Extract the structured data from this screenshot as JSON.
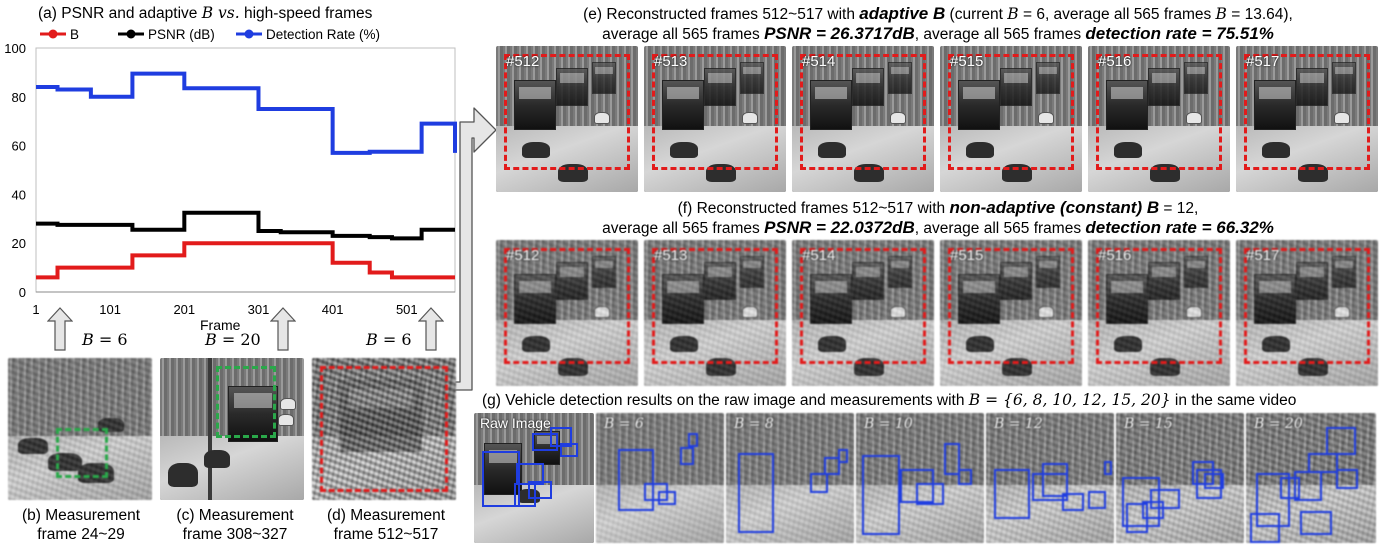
{
  "chart": {
    "title_pre": "(a) PSNR and adaptive ",
    "title_var": "B",
    "title_mid": " vs.",
    "title_post": " high-speed frames",
    "xlabel": "Frame"
  },
  "chart_data": {
    "type": "line",
    "xlabel": "Frame",
    "ylabel": "",
    "xlim": [
      1,
      566
    ],
    "ylim": [
      0,
      100
    ],
    "x_ticks": [
      "1",
      "101",
      "201",
      "301",
      "401",
      "501"
    ],
    "y_ticks": [
      "0",
      "20",
      "40",
      "60",
      "80",
      "100"
    ],
    "legend_position": "top",
    "series": [
      {
        "name": "B",
        "color": "#e21b1b",
        "x": [
          1,
          30,
          101,
          131,
          201,
          301,
          331,
          401,
          451,
          481,
          521,
          566
        ],
        "y": [
          6,
          10,
          10,
          15,
          20,
          20,
          20,
          12,
          8,
          6,
          6,
          6
        ]
      },
      {
        "name": "PSNR (dB)",
        "color": "#000000",
        "x": [
          1,
          30,
          101,
          131,
          201,
          241,
          301,
          331,
          401,
          451,
          481,
          521,
          566
        ],
        "y": [
          28,
          27.5,
          27.5,
          25.5,
          32.5,
          32.5,
          25,
          24.5,
          23,
          22.5,
          22,
          25.5,
          25.5
        ],
        "labels": []
      },
      {
        "name": "Detection Rate (%)",
        "color": "#1f3de0",
        "x": [
          1,
          30,
          75,
          131,
          201,
          301,
          401,
          451,
          481,
          521,
          566
        ],
        "y": [
          84,
          83,
          80,
          89.5,
          83.5,
          75,
          57,
          57.5,
          57.5,
          69,
          57
        ],
        "labels": []
      }
    ]
  },
  "arrows": {
    "b_label": "B",
    "eq": " = ",
    "values": [
      "6",
      "20",
      "6"
    ]
  },
  "measurements": [
    {
      "line1": "(b) Measurement",
      "line2": "frame 24~29"
    },
    {
      "line1": "(c) Measurement",
      "line2": "frame 308~327"
    },
    {
      "line1": "(d) Measurement",
      "line2": "frame 512~517"
    }
  ],
  "section_e": {
    "line1_pre": "(e) Reconstructed frames 512~517 with ",
    "line1_bold": "adaptive B",
    "line1_post": " (current ",
    "line1_b": "B",
    "line1_eq": " = 6, average all 565 frames ",
    "line1_b2": "B",
    "line1_end": " = 13.64),",
    "line2_pre": "average all 565 frames ",
    "line2_psnr": "PSNR = 26.3717dB",
    "line2_mid": ", average all 565 frames ",
    "line2_det": "detection rate = 75.51%",
    "frames": [
      "#512",
      "#513",
      "#514",
      "#515",
      "#516",
      "#517"
    ]
  },
  "section_f": {
    "line1_pre": "(f) Reconstructed frames 512~517 with ",
    "line1_bold": "non-adaptive (constant) B",
    "line1_post": " = 12,",
    "line2_pre": "average all 565 frames ",
    "line2_psnr": "PSNR = 22.0372dB",
    "line2_mid": ", average all 565 frames ",
    "line2_det": "detection rate = 66.32%",
    "frames": [
      "#512",
      "#513",
      "#514",
      "#515",
      "#516",
      "#517"
    ]
  },
  "section_g": {
    "caption_pre": "(g) Vehicle detection results on the raw image and measurements with ",
    "caption_math": "B = {6, 8, 10, 12, 15, 20}",
    "caption_post": " in the same video",
    "raw_label": "Raw Image",
    "panels": [
      "B = 6",
      "B = 8",
      "B = 10",
      "B = 12",
      "B = 15",
      "B = 20"
    ]
  },
  "colors": {
    "red": "#e21b1b",
    "blue": "#1f3de0",
    "green": "#2aa84a",
    "black": "#000000"
  }
}
